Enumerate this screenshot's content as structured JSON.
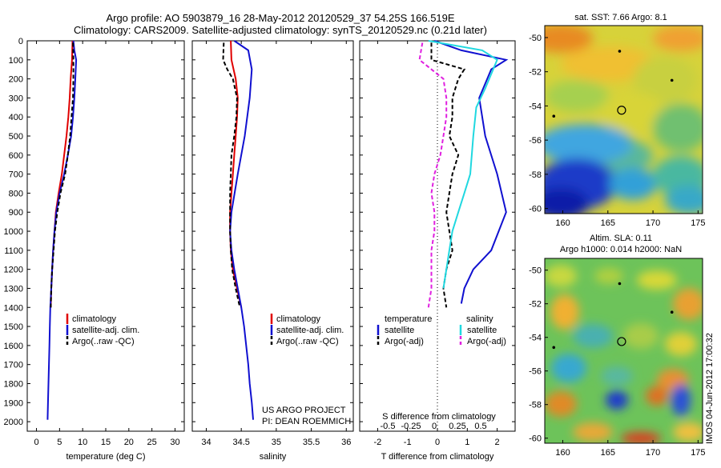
{
  "header": {
    "line1": "Argo profile: AO 5903879_16 28-May-2012 20120529_37 54.25S 166.519E",
    "line2": "Climatology: CARS2009. Satellite-adjusted climatology: synTS_20120529.nc (0.21d later)"
  },
  "colors": {
    "climatology": "#e00000",
    "satellite": "#1010d0",
    "argo": "#000000",
    "sat_salinity": "#20d8e0",
    "argo_salinity": "#e020e0"
  },
  "project": {
    "line1": "US ARGO PROJECT",
    "line2": "PI: DEAN ROEMMICH"
  },
  "timestamp": "IMOS 04-Jun-2012 17:00:32",
  "chart_data": [
    {
      "type": "line",
      "name": "temperature",
      "xlabel": "temperature (deg C)",
      "ylabel": "",
      "xlim": [
        -2,
        32
      ],
      "ylim": [
        2050,
        0
      ],
      "xticks": [
        0,
        5,
        10,
        15,
        20,
        25,
        30
      ],
      "yticks": [
        0,
        100,
        200,
        300,
        400,
        500,
        600,
        700,
        800,
        900,
        1000,
        1100,
        1200,
        1300,
        1400,
        1500,
        1600,
        1700,
        1800,
        1900,
        2000
      ],
      "series": [
        {
          "name": "climatology",
          "color": "red",
          "points": [
            [
              7.8,
              0
            ],
            [
              7.7,
              100
            ],
            [
              7.4,
              200
            ],
            [
              7.2,
              300
            ],
            [
              6.9,
              400
            ],
            [
              6.5,
              500
            ],
            [
              6.0,
              600
            ],
            [
              5.5,
              700
            ],
            [
              4.8,
              800
            ],
            [
              4.2,
              900
            ],
            [
              3.9,
              1000
            ],
            [
              3.6,
              1100
            ],
            [
              3.4,
              1200
            ],
            [
              3.2,
              1300
            ],
            [
              3.1,
              1400
            ]
          ]
        },
        {
          "name": "satellite-adj. clim.",
          "color": "blue",
          "points": [
            [
              8.0,
              0
            ],
            [
              8.2,
              50
            ],
            [
              8.6,
              100
            ],
            [
              8.4,
              200
            ],
            [
              8.2,
              300
            ],
            [
              7.9,
              400
            ],
            [
              7.5,
              500
            ],
            [
              6.8,
              600
            ],
            [
              6.0,
              700
            ],
            [
              5.0,
              800
            ],
            [
              4.3,
              900
            ],
            [
              3.9,
              1000
            ],
            [
              3.6,
              1100
            ],
            [
              3.4,
              1200
            ],
            [
              3.2,
              1300
            ],
            [
              3.0,
              1400
            ],
            [
              2.9,
              1500
            ],
            [
              2.8,
              1600
            ],
            [
              2.7,
              1700
            ],
            [
              2.6,
              1800
            ],
            [
              2.5,
              1900
            ],
            [
              2.4,
              1990
            ]
          ]
        },
        {
          "name": "Argo(..raw -QC)",
          "color": "black",
          "points": [
            [
              7.9,
              10
            ],
            [
              8.0,
              100
            ],
            [
              8.0,
              200
            ],
            [
              7.9,
              300
            ],
            [
              7.6,
              400
            ],
            [
              7.3,
              500
            ],
            [
              6.8,
              600
            ],
            [
              6.2,
              700
            ],
            [
              5.2,
              800
            ],
            [
              4.5,
              900
            ],
            [
              4.0,
              1000
            ],
            [
              3.7,
              1100
            ],
            [
              3.4,
              1200
            ],
            [
              3.2,
              1300
            ],
            [
              3.1,
              1400
            ]
          ]
        }
      ],
      "legend": [
        "climatology",
        "satellite-adj. clim.",
        "Argo(..raw -QC)"
      ]
    },
    {
      "type": "line",
      "name": "salinity",
      "xlabel": "salinity",
      "xlim": [
        33.8,
        36.1
      ],
      "ylim": [
        2050,
        0
      ],
      "xticks": [
        34,
        34.5,
        35,
        35.5,
        36
      ],
      "series": [
        {
          "name": "climatology",
          "color": "red",
          "points": [
            [
              34.35,
              0
            ],
            [
              34.36,
              100
            ],
            [
              34.42,
              200
            ],
            [
              34.45,
              300
            ],
            [
              34.44,
              400
            ],
            [
              34.42,
              500
            ],
            [
              34.4,
              600
            ],
            [
              34.38,
              700
            ],
            [
              34.36,
              800
            ],
            [
              34.34,
              900
            ],
            [
              34.34,
              1000
            ],
            [
              34.35,
              1100
            ],
            [
              34.38,
              1200
            ],
            [
              34.44,
              1300
            ],
            [
              34.5,
              1400
            ]
          ]
        },
        {
          "name": "satellite-adj. clim.",
          "color": "blue",
          "points": [
            [
              34.4,
              0
            ],
            [
              34.6,
              50
            ],
            [
              34.65,
              150
            ],
            [
              34.62,
              300
            ],
            [
              34.55,
              500
            ],
            [
              34.45,
              700
            ],
            [
              34.36,
              900
            ],
            [
              34.34,
              1000
            ],
            [
              34.36,
              1100
            ],
            [
              34.4,
              1200
            ],
            [
              34.45,
              1300
            ],
            [
              34.5,
              1400
            ],
            [
              34.54,
              1500
            ],
            [
              34.57,
              1600
            ],
            [
              34.6,
              1700
            ],
            [
              34.62,
              1800
            ],
            [
              34.65,
              1900
            ],
            [
              34.67,
              1990
            ]
          ]
        },
        {
          "name": "Argo(..raw -QC)",
          "color": "black",
          "points": [
            [
              34.25,
              10
            ],
            [
              34.24,
              100
            ],
            [
              34.3,
              150
            ],
            [
              34.38,
              200
            ],
            [
              34.44,
              300
            ],
            [
              34.43,
              400
            ],
            [
              34.4,
              500
            ],
            [
              34.36,
              600
            ],
            [
              34.35,
              700
            ],
            [
              34.34,
              800
            ],
            [
              34.34,
              900
            ],
            [
              34.34,
              1000
            ],
            [
              34.35,
              1100
            ],
            [
              34.37,
              1200
            ],
            [
              34.42,
              1300
            ],
            [
              34.48,
              1400
            ]
          ]
        }
      ],
      "legend": [
        "climatology",
        "satellite-adj. clim.",
        "Argo(..raw -QC)"
      ]
    },
    {
      "type": "line",
      "name": "difference",
      "xlabel": "T difference from climatology",
      "xlabel2": "S difference from climatology",
      "xlim": [
        -2.6,
        2.6
      ],
      "ylim": [
        2050,
        0
      ],
      "xticks": [
        -2,
        -1,
        0,
        1,
        2
      ],
      "sticks_labels": [
        "-0.5",
        "-0.25",
        "0",
        "0.25",
        "0.5"
      ],
      "series": [
        {
          "name": "temperature satellite",
          "color": "blue",
          "points": [
            [
              -0.1,
              0
            ],
            [
              0.8,
              50
            ],
            [
              2.3,
              100
            ],
            [
              1.8,
              150
            ],
            [
              1.4,
              300
            ],
            [
              1.6,
              500
            ],
            [
              2.0,
              700
            ],
            [
              2.3,
              900
            ],
            [
              1.8,
              1100
            ],
            [
              1.2,
              1200
            ],
            [
              0.9,
              1300
            ],
            [
              0.8,
              1380
            ]
          ]
        },
        {
          "name": "temperature Argo(-adj)",
          "color": "black",
          "points": [
            [
              -0.2,
              10
            ],
            [
              -0.2,
              100
            ],
            [
              0.9,
              150
            ],
            [
              0.7,
              200
            ],
            [
              0.5,
              300
            ],
            [
              0.5,
              400
            ],
            [
              0.4,
              500
            ],
            [
              0.7,
              600
            ],
            [
              0.5,
              700
            ],
            [
              0.4,
              800
            ],
            [
              0.3,
              900
            ],
            [
              0.4,
              1000
            ],
            [
              0.5,
              1100
            ],
            [
              0.3,
              1200
            ],
            [
              0.2,
              1300
            ],
            [
              0.3,
              1400
            ]
          ]
        },
        {
          "name": "salinity satellite",
          "color": "cyan",
          "points": [
            [
              -0.3,
              0
            ],
            [
              1.5,
              50
            ],
            [
              2.0,
              100
            ],
            [
              1.6,
              250
            ],
            [
              1.3,
              350
            ],
            [
              1.2,
              500
            ],
            [
              1.1,
              700
            ],
            [
              0.9,
              800
            ],
            [
              0.7,
              900
            ],
            [
              0.5,
              1000
            ],
            [
              0.4,
              1100
            ],
            [
              0.3,
              1200
            ],
            [
              0.2,
              1300
            ]
          ]
        },
        {
          "name": "salinity Argo(-adj)",
          "color": "magenta",
          "points": [
            [
              -0.5,
              10
            ],
            [
              -0.6,
              100
            ],
            [
              0.2,
              200
            ],
            [
              0.3,
              300
            ],
            [
              0.3,
              400
            ],
            [
              0.2,
              500
            ],
            [
              0.1,
              600
            ],
            [
              -0.1,
              700
            ],
            [
              -0.2,
              800
            ],
            [
              -0.1,
              900
            ],
            [
              -0.1,
              1000
            ],
            [
              -0.2,
              1100
            ],
            [
              -0.2,
              1200
            ],
            [
              -0.2,
              1300
            ],
            [
              -0.3,
              1400
            ]
          ]
        }
      ],
      "legend_titles": [
        "temperature",
        "salinity"
      ],
      "legend": [
        "satellite",
        "Argo(-adj)",
        "satellite",
        "Argo(-adj)"
      ]
    },
    {
      "type": "heatmap",
      "name": "sst-map",
      "title": "sat. SST: 7.66  Argo: 8.1",
      "xlim": [
        158,
        175.5
      ],
      "ylim": [
        -60.3,
        -49.3
      ],
      "xticks": [
        160,
        165,
        170,
        175
      ],
      "yticks": [
        -50,
        -52,
        -54,
        -56,
        -58,
        -60
      ],
      "argo_location": [
        166.52,
        -54.25
      ]
    },
    {
      "type": "heatmap",
      "name": "sla-map",
      "title": "Altim. SLA: 0.11",
      "title2": "Argo h1000: 0.014 h2000: NaN",
      "xlim": [
        158,
        175.5
      ],
      "ylim": [
        -60.3,
        -49.3
      ],
      "xticks": [
        160,
        165,
        170,
        175
      ],
      "yticks": [
        -50,
        -52,
        -54,
        -56,
        -58,
        -60
      ],
      "argo_location": [
        166.52,
        -54.25
      ]
    }
  ]
}
